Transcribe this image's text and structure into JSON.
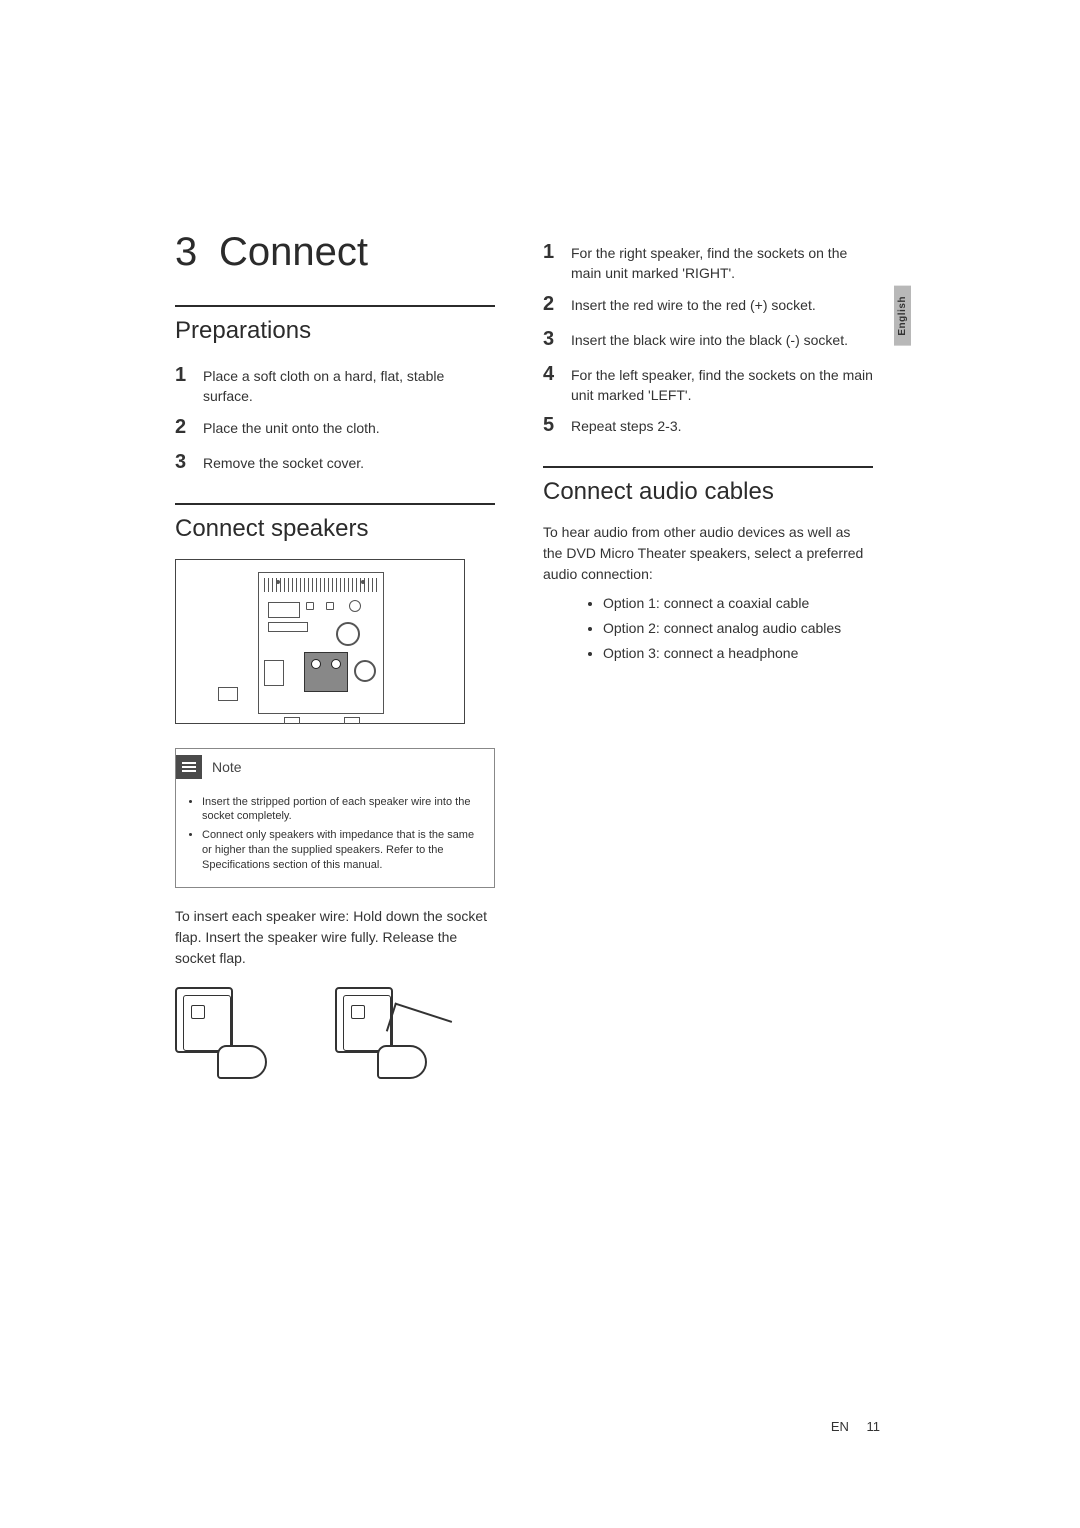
{
  "colors": {
    "text": "#333333",
    "heading": "#2b2b2b",
    "rule": "#2b2b2b",
    "note_border": "#888888",
    "note_icon_bg": "#4a4a4a",
    "lang_tab_bg": "#b8b8b8",
    "background": "#ffffff"
  },
  "language_tab": "English",
  "chapter": {
    "number": "3",
    "title": "Connect"
  },
  "sections": {
    "preparations": {
      "title": "Preparations",
      "steps": [
        "Place a soft cloth on a hard, flat, stable surface.",
        "Place the unit onto the cloth.",
        "Remove the socket cover."
      ]
    },
    "connect_speakers": {
      "title": "Connect speakers",
      "note": {
        "label": "Note",
        "items": [
          "Insert the stripped portion of each speaker wire into the socket completely.",
          "Connect only speakers with impedance that is the same or higher than the supplied speakers. Refer to the Specifications section of this manual."
        ]
      },
      "body": "To insert each speaker wire: Hold down the socket flap. Insert the speaker wire fully. Release the socket flap."
    },
    "right_steps": [
      "For the right speaker, find the sockets on the main unit marked 'RIGHT'.",
      "Insert the red wire to the red (+) socket.",
      "Insert the black wire into the black (-) socket.",
      "For the left speaker, find the sockets on the main unit marked 'LEFT'.",
      "Repeat steps 2-3."
    ],
    "connect_audio": {
      "title": "Connect audio cables",
      "intro": "To hear audio from other audio devices as well as the DVD Micro Theater speakers, select a preferred audio connection:",
      "options": [
        "Option 1: connect a coaxial cable",
        "Option 2: connect analog audio cables",
        "Option 3: connect a headphone"
      ]
    }
  },
  "footer": {
    "lang": "EN",
    "page": "11"
  }
}
